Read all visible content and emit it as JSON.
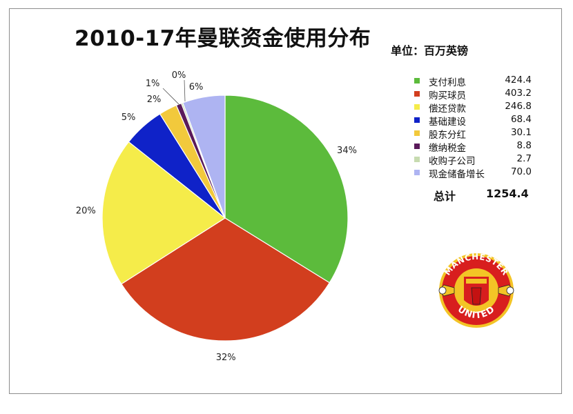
{
  "chart_data": {
    "type": "pie",
    "title": "2010-17年曼联资金使用分布",
    "unit": "单位：百万英镑",
    "categories": [
      "支付利息",
      "购买球员",
      "偿还贷款",
      "基础建设",
      "股东分红",
      "缴纳税金",
      "收购子公司",
      "现金储备增长"
    ],
    "values": [
      424.4,
      403.2,
      246.8,
      68.4,
      30.1,
      8.8,
      2.7,
      70.0
    ],
    "value_labels": [
      "424.4",
      "403.2",
      "246.8",
      "68.4",
      "30.1",
      "8.8",
      "2.7",
      "70.0"
    ],
    "percent_labels": [
      "34%",
      "32%",
      "20%",
      "5%",
      "2%",
      "1%",
      "0%",
      "6%"
    ],
    "colors": [
      "#5cbb3c",
      "#d23e1e",
      "#f5ec4a",
      "#0f22c8",
      "#f2c93c",
      "#5a1a5a",
      "#c7dbb0",
      "#aeb4f2"
    ],
    "total_label": "总计",
    "total_value": "1254.4",
    "legend_position": "right",
    "start_angle_deg": 0,
    "direction": "clockwise"
  },
  "logo": {
    "name": "manchester-united-crest",
    "text_top": "MANCHESTER",
    "text_bottom": "UNITED"
  }
}
